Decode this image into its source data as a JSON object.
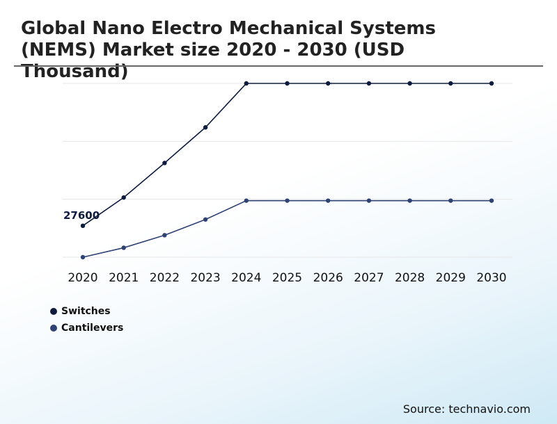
{
  "chart_data": {
    "type": "line",
    "title": "Global Nano Electro Mechanical Systems (NEMS) Market size 2020 - 2030 (USD Thousand)",
    "categories": [
      "2020",
      "2021",
      "2022",
      "2023",
      "2024",
      "2025",
      "2026",
      "2027",
      "2028",
      "2029",
      "2030"
    ],
    "series": [
      {
        "name": "Switches",
        "color": "#0d1b3e",
        "values": [
          27600,
          30300,
          33600,
          37000,
          41200,
          41200,
          41200,
          41200,
          41200,
          41200,
          41200
        ]
      },
      {
        "name": "Cantilevers",
        "color": "#2e4374",
        "values": [
          24600,
          25500,
          26700,
          28200,
          30000,
          30000,
          30000,
          30000,
          30000,
          30000,
          30000
        ]
      }
    ],
    "annotations": [
      {
        "series": 0,
        "index": 0,
        "label": "27600"
      }
    ],
    "ylim": [
      24600,
      41200
    ],
    "gridlines": 4,
    "xlabel": "",
    "ylabel": "",
    "legend": "bottom-left"
  },
  "source": "Source: technavio.com"
}
